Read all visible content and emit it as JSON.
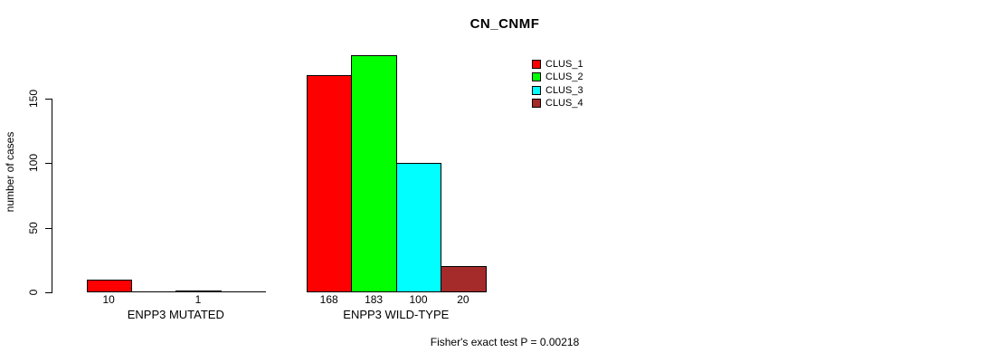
{
  "chart_data": {
    "type": "bar",
    "title": "CN_CNMF",
    "ylabel": "number of cases",
    "xlabel": "",
    "categories": [
      "ENPP3 MUTATED",
      "ENPP3 WILD-TYPE"
    ],
    "series": [
      {
        "name": "CLUS_1",
        "color": "#FF0000",
        "values": [
          10,
          168
        ]
      },
      {
        "name": "CLUS_2",
        "color": "#00FF00",
        "values": [
          0,
          183
        ]
      },
      {
        "name": "CLUS_3",
        "color": "#00FFFF",
        "values": [
          1,
          100
        ]
      },
      {
        "name": "CLUS_4",
        "color": "#A52A2A",
        "values": [
          0,
          20
        ]
      }
    ],
    "bar_value_labels": [
      [
        "10",
        "",
        "1",
        ""
      ],
      [
        "168",
        "183",
        "100",
        "20"
      ]
    ],
    "yticks": [
      0,
      50,
      100,
      150
    ],
    "ytick_labels": [
      "0",
      "50",
      "100",
      "150"
    ],
    "ylim": [
      0,
      190
    ],
    "grid": false,
    "legend_position": "top-right",
    "annotation": "Fisher's exact test P = 0.00218"
  },
  "colors": {
    "background": "#FFFFFF",
    "axis": "#000000",
    "text": "#000000",
    "bar_outline": "#000000"
  }
}
